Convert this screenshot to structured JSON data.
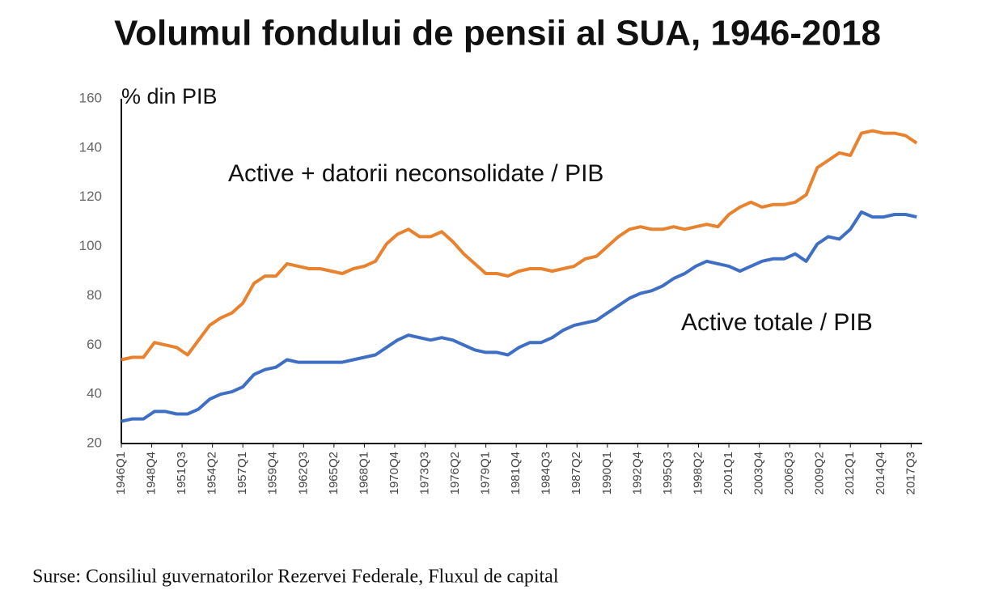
{
  "chart_data": {
    "type": "line",
    "title": "Volumul fondului de pensii al SUA, 1946-2018",
    "y_label": "% din PIB",
    "annotations": [
      "Active + datorii neconsolidate / PIB",
      "Active totale / PIB"
    ],
    "source": "Surse: Consiliul guvernatorilor Rezervei Federale, Fluxul de capital",
    "x": [
      1946,
      1947,
      1948,
      1949,
      1950,
      1951,
      1952,
      1953,
      1954,
      1955,
      1956,
      1957,
      1958,
      1959,
      1960,
      1961,
      1962,
      1963,
      1964,
      1965,
      1966,
      1967,
      1968,
      1969,
      1970,
      1971,
      1972,
      1973,
      1974,
      1975,
      1976,
      1977,
      1978,
      1979,
      1980,
      1981,
      1982,
      1983,
      1984,
      1985,
      1986,
      1987,
      1988,
      1989,
      1990,
      1991,
      1992,
      1993,
      1994,
      1995,
      1996,
      1997,
      1998,
      1999,
      2000,
      2001,
      2002,
      2003,
      2004,
      2005,
      2006,
      2007,
      2008,
      2009,
      2010,
      2011,
      2012,
      2013,
      2014,
      2015,
      2016,
      2017,
      2018
    ],
    "series": [
      {
        "name": "Active + datorii neconsolidate / PIB",
        "color": "#e8822e",
        "values": [
          54,
          55,
          55,
          61,
          60,
          59,
          56,
          62,
          68,
          71,
          73,
          77,
          85,
          88,
          88,
          93,
          92,
          91,
          91,
          90,
          89,
          91,
          92,
          94,
          101,
          105,
          107,
          104,
          104,
          106,
          102,
          97,
          93,
          89,
          89,
          88,
          90,
          91,
          91,
          90,
          91,
          92,
          95,
          96,
          100,
          104,
          107,
          108,
          107,
          107,
          108,
          107,
          108,
          109,
          108,
          113,
          116,
          118,
          116,
          117,
          117,
          118,
          121,
          132,
          135,
          138,
          137,
          146,
          147,
          146,
          146,
          145,
          142
        ]
      },
      {
        "name": "Active totale / PIB",
        "color": "#3f6fc4",
        "values": [
          29,
          30,
          30,
          33,
          33,
          32,
          32,
          34,
          38,
          40,
          41,
          43,
          48,
          50,
          51,
          54,
          53,
          53,
          53,
          53,
          53,
          54,
          55,
          56,
          59,
          62,
          64,
          63,
          62,
          63,
          62,
          60,
          58,
          57,
          57,
          56,
          59,
          61,
          61,
          63,
          66,
          68,
          69,
          70,
          73,
          76,
          79,
          81,
          82,
          84,
          87,
          89,
          92,
          94,
          93,
          92,
          90,
          92,
          94,
          95,
          95,
          97,
          94,
          101,
          104,
          103,
          107,
          114,
          112,
          112,
          113,
          113,
          112
        ]
      }
    ],
    "xlim": [
      1946,
      2018.5
    ],
    "xticks": [
      {
        "value": 1946,
        "label": "1946Q1"
      },
      {
        "value": 1948.75,
        "label": "1948Q4"
      },
      {
        "value": 1951.5,
        "label": "1951Q3"
      },
      {
        "value": 1954.25,
        "label": "1954Q2"
      },
      {
        "value": 1957,
        "label": "1957Q1"
      },
      {
        "value": 1959.75,
        "label": "1959Q4"
      },
      {
        "value": 1962.5,
        "label": "1962Q3"
      },
      {
        "value": 1965.25,
        "label": "1965Q2"
      },
      {
        "value": 1968,
        "label": "1968Q1"
      },
      {
        "value": 1970.75,
        "label": "1970Q4"
      },
      {
        "value": 1973.5,
        "label": "1973Q3"
      },
      {
        "value": 1976.25,
        "label": "1976Q2"
      },
      {
        "value": 1979,
        "label": "1979Q1"
      },
      {
        "value": 1981.75,
        "label": "1981Q4"
      },
      {
        "value": 1984.5,
        "label": "1984Q3"
      },
      {
        "value": 1987.25,
        "label": "1987Q2"
      },
      {
        "value": 1990,
        "label": "1990Q1"
      },
      {
        "value": 1992.75,
        "label": "1992Q4"
      },
      {
        "value": 1995.5,
        "label": "1995Q3"
      },
      {
        "value": 1998.25,
        "label": "1998Q2"
      },
      {
        "value": 2001,
        "label": "2001Q1"
      },
      {
        "value": 2003.75,
        "label": "2003Q4"
      },
      {
        "value": 2006.5,
        "label": "2006Q3"
      },
      {
        "value": 2009.25,
        "label": "2009Q2"
      },
      {
        "value": 2012,
        "label": "2012Q1"
      },
      {
        "value": 2014.75,
        "label": "2014Q4"
      },
      {
        "value": 2017.5,
        "label": "2017Q3"
      }
    ],
    "ylim": [
      20,
      160
    ],
    "yticks": [
      20,
      40,
      60,
      80,
      100,
      120,
      140,
      160
    ]
  }
}
